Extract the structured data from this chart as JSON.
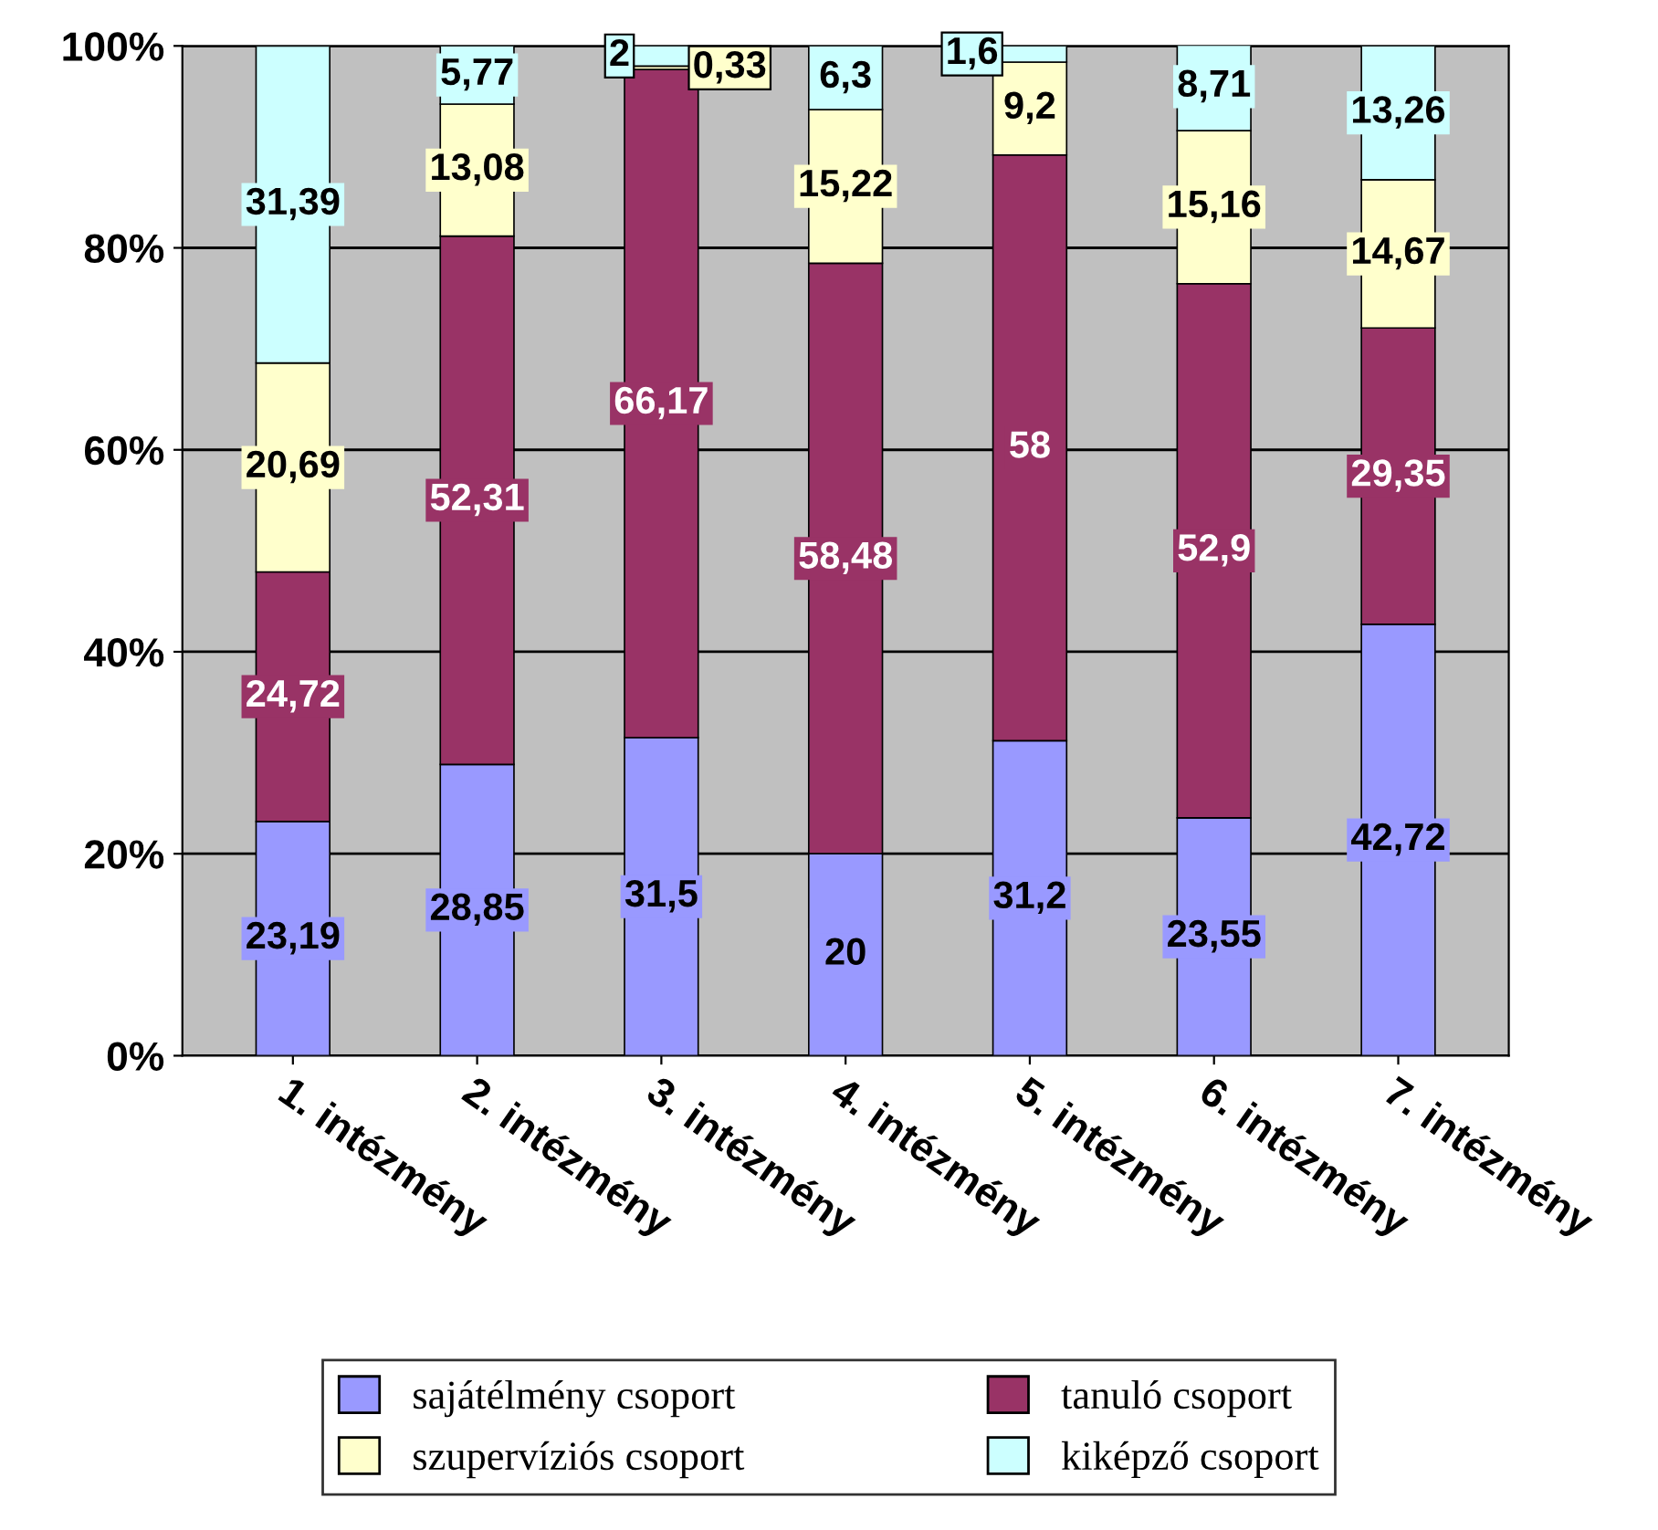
{
  "chart_data": {
    "type": "bar",
    "stacked": true,
    "categories": [
      "1. intézmény",
      "2. intézmény",
      "3. intézmény",
      "4. intézmény",
      "5. intézmény",
      "6. intézmény",
      "7. intézmény"
    ],
    "series": [
      {
        "name": "sajátélmény csoport",
        "color": "#9999ff",
        "values": [
          23.19,
          28.85,
          31.5,
          20,
          31.2,
          23.55,
          42.72
        ],
        "value_labels": [
          "23,19",
          "28,85",
          "31,5",
          "20",
          "31,2",
          "23,55",
          "42,72"
        ]
      },
      {
        "name": "tanuló csoport",
        "color": "#993366",
        "values": [
          24.72,
          52.31,
          66.17,
          58.48,
          58,
          52.9,
          29.35
        ],
        "value_labels": [
          "24,72",
          "52,31",
          "66,17",
          "58,48",
          "58",
          "52,9",
          "29,35"
        ]
      },
      {
        "name": "szupervíziós csoport",
        "color": "#ffffcc",
        "values": [
          20.69,
          13.08,
          0.33,
          15.22,
          9.2,
          15.16,
          14.67
        ],
        "value_labels": [
          "20,69",
          "13,08",
          "0,33",
          "15,22",
          "9,2",
          "15,16",
          "14,67"
        ]
      },
      {
        "name": "kiképző csoport",
        "color": "#ccffff",
        "values": [
          31.39,
          5.77,
          2,
          6.3,
          1.6,
          8.71,
          13.26
        ],
        "value_labels": [
          "31,39",
          "5,77",
          "2",
          "6,3",
          "1,6",
          "8,71",
          "13,26"
        ]
      }
    ],
    "ylim": [
      0,
      100
    ],
    "yticks": [
      {
        "value": 0,
        "label": "0%"
      },
      {
        "value": 20,
        "label": "20%"
      },
      {
        "value": 40,
        "label": "40%"
      },
      {
        "value": 60,
        "label": "60%"
      },
      {
        "value": 80,
        "label": "80%"
      },
      {
        "value": 100,
        "label": "100%"
      }
    ],
    "grid": "y",
    "legend": "bottom"
  }
}
